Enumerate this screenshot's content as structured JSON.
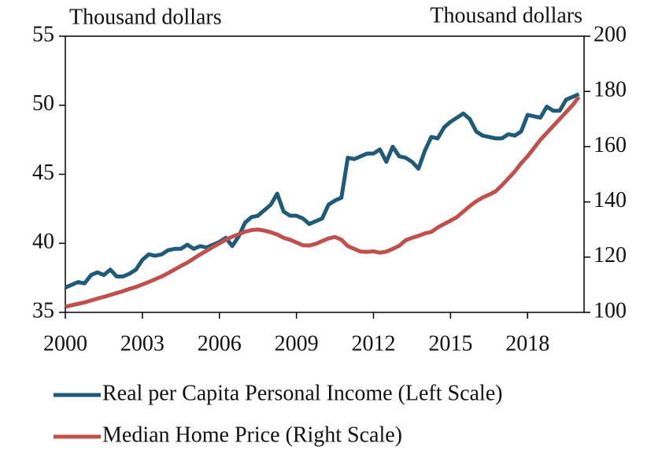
{
  "chart_data": {
    "type": "line",
    "y_label": "Thousand dollars",
    "y2_label": "Thousand dollars",
    "x": [
      2000,
      2000.25,
      2000.5,
      2000.75,
      2001,
      2001.25,
      2001.5,
      2001.75,
      2002,
      2002.25,
      2002.5,
      2002.75,
      2003,
      2003.25,
      2003.5,
      2003.75,
      2004,
      2004.25,
      2004.5,
      2004.75,
      2005,
      2005.25,
      2005.5,
      2005.75,
      2006,
      2006.25,
      2006.5,
      2006.75,
      2007,
      2007.25,
      2007.5,
      2007.75,
      2008,
      2008.25,
      2008.5,
      2008.75,
      2009,
      2009.25,
      2009.5,
      2009.75,
      2010,
      2010.25,
      2010.5,
      2010.75,
      2011,
      2011.25,
      2011.5,
      2011.75,
      2012,
      2012.25,
      2012.5,
      2012.75,
      2013,
      2013.25,
      2013.5,
      2013.75,
      2014,
      2014.25,
      2014.5,
      2014.75,
      2015,
      2015.25,
      2015.5,
      2015.75,
      2016,
      2016.25,
      2016.5,
      2016.75,
      2017,
      2017.25,
      2017.5,
      2017.75,
      2018,
      2018.25,
      2018.5,
      2018.75,
      2019,
      2019.25,
      2019.5,
      2019.75,
      2020
    ],
    "series": [
      {
        "name": "Real per Capita Personal Income (Left Scale)",
        "color": "#1f5b79",
        "values": [
          36.8,
          37.0,
          37.2,
          37.1,
          37.7,
          37.9,
          37.7,
          38.1,
          37.6,
          37.6,
          37.8,
          38.1,
          38.8,
          39.2,
          39.1,
          39.2,
          39.5,
          39.6,
          39.6,
          39.9,
          39.6,
          39.8,
          39.7,
          39.9,
          40.1,
          40.4,
          39.8,
          40.5,
          41.5,
          41.9,
          42.0,
          42.4,
          42.8,
          43.6,
          42.3,
          42.0,
          42.0,
          41.8,
          41.4,
          41.6,
          41.8,
          42.8,
          43.1,
          43.3,
          46.2,
          46.1,
          46.3,
          46.5,
          46.5,
          46.8,
          45.9,
          47.0,
          46.3,
          46.2,
          45.9,
          45.4,
          46.7,
          47.7,
          47.6,
          48.4,
          48.8,
          49.1,
          49.4,
          49.0,
          48.1,
          47.8,
          47.7,
          47.6,
          47.6,
          47.9,
          47.8,
          48.1,
          49.3,
          49.2,
          49.1,
          49.9,
          49.6,
          49.6,
          50.4,
          50.6,
          50.8
        ]
      },
      {
        "name": "Median Home Price (Right Scale)",
        "color": "#c0504d",
        "axis": "y2",
        "values": [
          102,
          102.6,
          103.1,
          103.6,
          104.3,
          105,
          105.6,
          106.3,
          107,
          107.7,
          108.5,
          109.2,
          110.1,
          111,
          112,
          113,
          114.2,
          115.5,
          116.8,
          118,
          119.5,
          121,
          122.3,
          123.7,
          125,
          126.3,
          127.4,
          128.3,
          129.2,
          129.8,
          130,
          129.6,
          129,
          128.2,
          127,
          126.3,
          125.3,
          124.3,
          124.2,
          124.8,
          125.8,
          126.8,
          127.3,
          126.3,
          124,
          123,
          122,
          121.9,
          122.1,
          121.6,
          122,
          123,
          124.1,
          126.1,
          127,
          127.7,
          128.6,
          129.1,
          130.7,
          132,
          133.2,
          134.5,
          136.5,
          138.5,
          140.2,
          141.6,
          142.6,
          143.8,
          146,
          148.5,
          151,
          154,
          156.5,
          159.5,
          162.5,
          165,
          167.5,
          170,
          172.5,
          175,
          178
        ]
      }
    ],
    "xlim": [
      2000,
      2020.2
    ],
    "xticks": [
      2000,
      2003,
      2006,
      2009,
      2012,
      2015,
      2018
    ],
    "ylim": [
      35,
      55
    ],
    "yticks": [
      35,
      40,
      45,
      50,
      55
    ],
    "y2lim": [
      100,
      200
    ],
    "y2ticks": [
      100,
      120,
      140,
      160,
      180,
      200
    ]
  }
}
